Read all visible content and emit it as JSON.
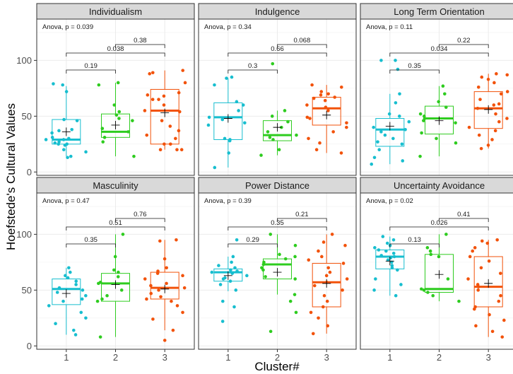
{
  "chart_data": {
    "type": "boxplot",
    "ylabel": "Hoefstede's Cultural Values",
    "xlabel": "Cluster#",
    "categories": [
      "1",
      "2",
      "3"
    ],
    "ylim": [
      -3,
      137
    ],
    "yticks": [
      0,
      50,
      100
    ],
    "grid": true,
    "colors": {
      "1": "#17becf",
      "2": "#2ecc1f",
      "3": "#f2520a"
    },
    "panels": [
      {
        "name": "Individualism",
        "anova": "Anova, p = 0.039",
        "comparisons": [
          {
            "from": "1",
            "to": "2",
            "p": "0.19",
            "level": 0
          },
          {
            "from": "1",
            "to": "3",
            "p": "0.038",
            "level": 1
          },
          {
            "from": "2",
            "to": "3",
            "p": "0.38",
            "level": 2
          }
        ],
        "groups": [
          {
            "cluster": "1",
            "q1": 25,
            "median": 29,
            "q3": 47,
            "min": 14,
            "max": 77,
            "mean": 36,
            "points": [
              79,
              78,
              72,
              47,
              46,
              38,
              37,
              35,
              31,
              30,
              29,
              29,
              27,
              26,
              25,
              25,
              24,
              20,
              18,
              14,
              13
            ]
          },
          {
            "cluster": "2",
            "q1": 31,
            "median": 36,
            "q3": 52,
            "min": 14,
            "max": 80,
            "mean": 42,
            "points": [
              80,
              78,
              60,
              54,
              51,
              48,
              46,
              39,
              36,
              31,
              27,
              14
            ]
          },
          {
            "cluster": "3",
            "q1": 25,
            "median": 55,
            "q3": 74,
            "min": 20,
            "max": 91,
            "mean": 53,
            "points": [
              91,
              89,
              88,
              80,
              71,
              69,
              68,
              65,
              65,
              60,
              55,
              54,
              46,
              41,
              37,
              33,
              30,
              25,
              25,
              20,
              20,
              20
            ]
          }
        ]
      },
      {
        "name": "Indulgence",
        "anova": "Anova, p = 0.34",
        "comparisons": [
          {
            "from": "1",
            "to": "2",
            "p": "0.3",
            "level": 0
          },
          {
            "from": "1",
            "to": "3",
            "p": "0.66",
            "level": 1
          },
          {
            "from": "2",
            "to": "3",
            "p": "0.068",
            "level": 2
          }
        ],
        "groups": [
          {
            "cluster": "1",
            "q1": 29,
            "median": 49,
            "q3": 62,
            "min": 4,
            "max": 84,
            "mean": 48,
            "points": [
              85,
              84,
              78,
              63,
              60,
              55,
              49,
              47,
              44,
              42,
              30,
              29,
              28,
              17,
              4
            ]
          },
          {
            "cluster": "2",
            "q1": 28,
            "median": 33,
            "q3": 46,
            "min": 15,
            "max": 55,
            "mean": 40,
            "points": [
              97,
              55,
              50,
              45,
              40,
              36,
              33,
              31,
              29,
              20,
              15
            ]
          },
          {
            "cluster": "3",
            "q1": 42,
            "median": 57,
            "q3": 67,
            "min": 17,
            "max": 78,
            "mean": 51,
            "points": [
              78,
              76,
              72,
              70,
              69,
              67,
              66,
              64,
              60,
              58,
              55,
              49,
              48,
              44,
              40,
              36,
              30,
              26,
              20,
              17
            ]
          }
        ]
      },
      {
        "name": "Long Term Orientation",
        "anova": "Anova, p = 0.11",
        "comparisons": [
          {
            "from": "1",
            "to": "2",
            "p": "0.35",
            "level": 0
          },
          {
            "from": "1",
            "to": "3",
            "p": "0.034",
            "level": 1
          },
          {
            "from": "2",
            "to": "3",
            "p": "0.22",
            "level": 2
          }
        ],
        "groups": [
          {
            "cluster": "1",
            "q1": 23,
            "median": 38,
            "q3": 48,
            "min": 7,
            "max": 70,
            "mean": 41,
            "points": [
              100,
              100,
              92,
              70,
              62,
              52,
              50,
              45,
              40,
              38,
              36,
              33,
              30,
              27,
              25,
              20,
              13,
              10,
              7
            ]
          },
          {
            "cluster": "2",
            "q1": 34,
            "median": 48,
            "q3": 59,
            "min": 14,
            "max": 77,
            "mean": 46,
            "points": [
              77,
              70,
              63,
              58,
              52,
              50,
              48,
              46,
              44,
              35,
              30,
              26,
              14
            ]
          },
          {
            "cluster": "3",
            "q1": 39,
            "median": 57,
            "q3": 72,
            "min": 21,
            "max": 88,
            "mean": 56,
            "points": [
              88,
              87,
              85,
              83,
              80,
              76,
              72,
              70,
              65,
              61,
              60,
              57,
              52,
              48,
              45,
              40,
              37,
              33,
              29,
              24,
              21
            ]
          }
        ]
      },
      {
        "name": "Masculinity",
        "anova": "Anova, p = 0.47",
        "comparisons": [
          {
            "from": "1",
            "to": "2",
            "p": "0.35",
            "level": 0
          },
          {
            "from": "1",
            "to": "3",
            "p": "0.51",
            "level": 1
          },
          {
            "from": "2",
            "to": "3",
            "p": "0.76",
            "level": 2
          }
        ],
        "groups": [
          {
            "cluster": "1",
            "q1": 37,
            "median": 51,
            "q3": 60,
            "min": 10,
            "max": 70,
            "mean": 47,
            "points": [
              70,
              66,
              63,
              61,
              58,
              55,
              52,
              50,
              48,
              45,
              42,
              40,
              36,
              30,
              25,
              20,
              14,
              10
            ]
          },
          {
            "cluster": "2",
            "q1": 40,
            "median": 56,
            "q3": 65,
            "min": 8,
            "max": 100,
            "mean": 55,
            "points": [
              100,
              80,
              68,
              66,
              62,
              57,
              56,
              50,
              45,
              42,
              40,
              8
            ]
          },
          {
            "cluster": "3",
            "q1": 42,
            "median": 52,
            "q3": 66,
            "min": 14,
            "max": 95,
            "mean": 51,
            "points": [
              95,
              94,
              78,
              70,
              67,
              65,
              63,
              60,
              56,
              54,
              52,
              50,
              47,
              44,
              42,
              40,
              36,
              30,
              24,
              14,
              5
            ]
          }
        ]
      },
      {
        "name": "Power Distance",
        "anova": "Anova, p = 0.39",
        "comparisons": [
          {
            "from": "1",
            "to": "2",
            "p": "0.29",
            "level": 0
          },
          {
            "from": "1",
            "to": "3",
            "p": "0.35",
            "level": 1
          },
          {
            "from": "2",
            "to": "3",
            "p": "0.21",
            "level": 2
          }
        ],
        "groups": [
          {
            "cluster": "1",
            "q1": 58,
            "median": 66,
            "q3": 69,
            "min": 49,
            "max": 80,
            "mean": 63,
            "points": [
              95,
              80,
              75,
              72,
              70,
              68,
              67,
              66,
              65,
              63,
              61,
              60,
              58,
              55,
              50,
              40,
              35,
              22
            ]
          },
          {
            "cluster": "2",
            "q1": 60,
            "median": 73,
            "q3": 78,
            "min": 46,
            "max": 100,
            "mean": 66,
            "points": [
              100,
              90,
              82,
              80,
              78,
              75,
              73,
              70,
              68,
              62,
              60,
              46,
              40,
              30,
              13
            ]
          },
          {
            "cluster": "3",
            "q1": 35,
            "median": 57,
            "q3": 74,
            "min": 11,
            "max": 100,
            "mean": 56,
            "points": [
              100,
              93,
              90,
              85,
              80,
              77,
              74,
              70,
              66,
              63,
              60,
              57,
              54,
              50,
              45,
              40,
              35,
              30,
              25,
              18,
              11
            ]
          }
        ]
      },
      {
        "name": "Uncertainty Avoidance",
        "anova": "Anova, p = 0.02",
        "comparisons": [
          {
            "from": "1",
            "to": "2",
            "p": "0.13",
            "level": 0
          },
          {
            "from": "1",
            "to": "3",
            "p": "0.026",
            "level": 1
          },
          {
            "from": "2",
            "to": "3",
            "p": "0.41",
            "level": 2
          }
        ],
        "groups": [
          {
            "cluster": "1",
            "q1": 69,
            "median": 80,
            "q3": 86,
            "min": 45,
            "max": 98,
            "mean": 76,
            "points": [
              98,
              95,
              92,
              90,
              88,
              86,
              85,
              83,
              81,
              80,
              79,
              77,
              75,
              72,
              70,
              68,
              60,
              55,
              50,
              45
            ]
          },
          {
            "cluster": "2",
            "q1": 48,
            "median": 51,
            "q3": 82,
            "min": 40,
            "max": 100,
            "mean": 64,
            "points": [
              100,
              88,
              85,
              82,
              80,
              60,
              51,
              50,
              48,
              45,
              40
            ]
          },
          {
            "cluster": "3",
            "q1": 35,
            "median": 53,
            "q3": 80,
            "min": 8,
            "max": 95,
            "mean": 56,
            "points": [
              95,
              94,
              92,
              88,
              85,
              80,
              76,
              70,
              65,
              60,
              55,
              53,
              50,
              45,
              40,
              35,
              33,
              28,
              23,
              18,
              13,
              8
            ]
          }
        ]
      }
    ]
  }
}
